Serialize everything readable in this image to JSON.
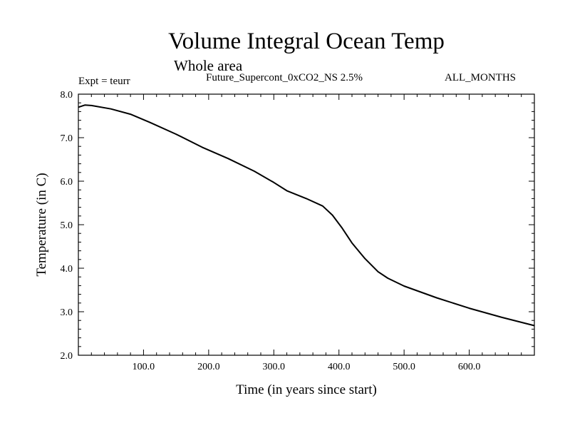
{
  "chart_data": {
    "type": "line",
    "title": "Volume Integral Ocean Temp",
    "subtitle": "Whole area",
    "annotations": {
      "expt": "Expt = teurr",
      "experiment": "Future_Supercont_0xCO2_NS 2.5%",
      "months": "ALL_MONTHS"
    },
    "xlabel": "Time (in years since start)",
    "ylabel": "Temperature (in C)",
    "xlim": [
      0,
      700
    ],
    "ylim": [
      2.0,
      8.0
    ],
    "xticks": [
      100,
      200,
      300,
      400,
      500,
      600
    ],
    "xtick_labels": [
      "100.0",
      "200.0",
      "300.0",
      "400.0",
      "500.0",
      "600.0"
    ],
    "yticks": [
      2,
      3,
      4,
      5,
      6,
      7,
      8
    ],
    "ytick_labels": [
      "2.0",
      "3.0",
      "4.0",
      "5.0",
      "6.0",
      "7.0",
      "8.0"
    ],
    "grid": false,
    "series": [
      {
        "x": [
          0,
          10,
          20,
          50,
          80,
          110,
          150,
          190,
          230,
          270,
          300,
          320,
          350,
          375,
          390,
          405,
          420,
          440,
          460,
          475,
          500,
          550,
          600,
          650,
          700
        ],
        "y": [
          7.7,
          7.75,
          7.74,
          7.66,
          7.54,
          7.35,
          7.08,
          6.78,
          6.52,
          6.23,
          5.97,
          5.78,
          5.6,
          5.43,
          5.22,
          4.92,
          4.58,
          4.22,
          3.92,
          3.77,
          3.59,
          3.32,
          3.08,
          2.87,
          2.68
        ]
      }
    ]
  }
}
